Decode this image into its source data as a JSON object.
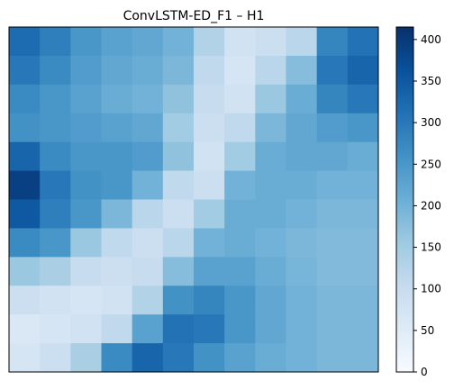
{
  "chart_data": {
    "type": "heatmap",
    "title": "ConvLSTM-ED_F1 – H1",
    "xlabel": "",
    "ylabel": "",
    "grid": false,
    "x_ticks_shown": false,
    "y_ticks_shown": false,
    "colormap": "Blues",
    "colormap_stops": [
      "#f7fbff",
      "#deebf7",
      "#c6dbef",
      "#9ecae1",
      "#6baed6",
      "#4292c6",
      "#2171b5",
      "#08519c",
      "#08306b"
    ],
    "colorbar": {
      "range": [
        0,
        415
      ],
      "ticks": [
        0,
        50,
        100,
        150,
        200,
        250,
        300,
        350,
        400
      ],
      "tick_labels": [
        "0",
        "50",
        "100",
        "150",
        "200",
        "250",
        "300",
        "350",
        "400"
      ],
      "placement": "right"
    },
    "grid_size": [
      12,
      12
    ],
    "values": [
      [
        320,
        290,
        250,
        230,
        220,
        200,
        130,
        80,
        90,
        120,
        280,
        310
      ],
      [
        300,
        270,
        240,
        220,
        210,
        190,
        110,
        70,
        120,
        180,
        300,
        330
      ],
      [
        270,
        250,
        230,
        210,
        200,
        170,
        100,
        80,
        160,
        210,
        280,
        300
      ],
      [
        260,
        250,
        240,
        230,
        220,
        150,
        90,
        110,
        190,
        220,
        240,
        250
      ],
      [
        330,
        270,
        250,
        250,
        240,
        170,
        80,
        150,
        210,
        220,
        220,
        210
      ],
      [
        390,
        300,
        260,
        250,
        200,
        110,
        90,
        200,
        210,
        210,
        200,
        200
      ],
      [
        350,
        290,
        250,
        190,
        120,
        90,
        150,
        210,
        210,
        200,
        190,
        190
      ],
      [
        270,
        250,
        160,
        110,
        90,
        120,
        200,
        210,
        200,
        190,
        185,
        185
      ],
      [
        160,
        140,
        100,
        90,
        100,
        180,
        230,
        230,
        210,
        195,
        185,
        185
      ],
      [
        90,
        80,
        70,
        80,
        130,
        260,
        280,
        250,
        220,
        200,
        190,
        190
      ],
      [
        60,
        70,
        80,
        110,
        230,
        310,
        300,
        250,
        220,
        200,
        190,
        190
      ],
      [
        70,
        90,
        140,
        270,
        330,
        300,
        260,
        230,
        210,
        200,
        190,
        190
      ]
    ]
  }
}
